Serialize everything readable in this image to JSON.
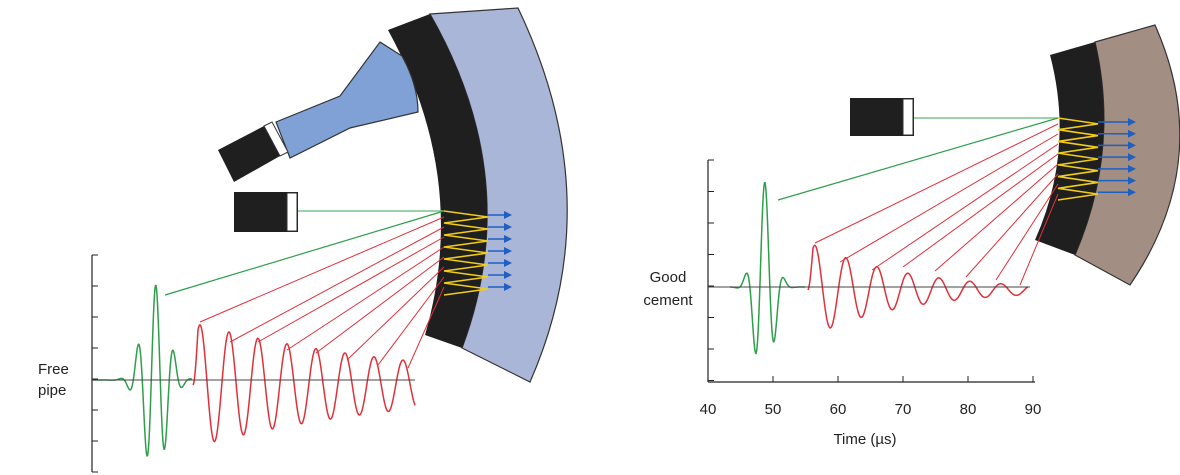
{
  "left_panel": {
    "label_lines": [
      "Free",
      "pipe"
    ]
  },
  "right_panel": {
    "label_lines": [
      "Good",
      "cement"
    ],
    "x_axis": {
      "ticks": [
        "40",
        "50",
        "60",
        "70",
        "80",
        "90"
      ],
      "title": "Time (µs)"
    }
  }
}
